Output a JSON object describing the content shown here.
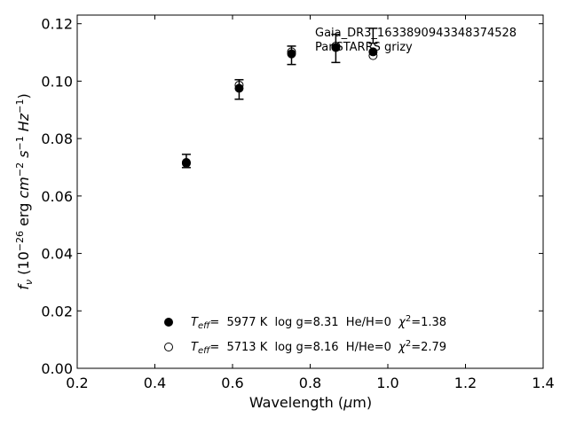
{
  "chart_data": {
    "type": "scatter",
    "xlabel_parts": {
      "main": "Wavelength (",
      "mu": "μ",
      "unit": "m)"
    },
    "ylabel_parts": {
      "f": "f",
      "nu": "ν",
      "open": " (10",
      "exp1": "−26",
      "erg": " erg ",
      "cm": "cm",
      "exp2": "−2",
      "s": " s",
      "exp3": "−1",
      "hz": " Hz",
      "exp4": "−1",
      "close": ")"
    },
    "xlim": [
      0.2,
      1.4
    ],
    "ylim": [
      0.0,
      0.123
    ],
    "xticks": [
      "0.2",
      "0.4",
      "0.6",
      "0.8",
      "1.0",
      "1.2",
      "1.4"
    ],
    "yticks": [
      "0.00",
      "0.02",
      "0.04",
      "0.06",
      "0.08",
      "0.10",
      "0.12"
    ],
    "grid": false,
    "annotations": {
      "source_id": "Gaia_DR3_1633890943348374528",
      "survey": "PanSTARRS grizy"
    },
    "observed": {
      "x": [
        0.481,
        0.617,
        0.752,
        0.866,
        0.962
      ],
      "y": [
        0.0722,
        0.0971,
        0.109,
        0.1114,
        0.1158
      ],
      "yerr": [
        0.0023,
        0.0034,
        0.0032,
        0.0049,
        0.0026
      ]
    },
    "series": [
      {
        "marker": "filled-circle",
        "label_parts": {
          "T": "T",
          "eff": "eff",
          "rest1": "=  5977 K  log g=8.31  He/H=0  ",
          "chi": "χ",
          "sup": "2",
          "rest2": "=1.38"
        },
        "x": [
          0.481,
          0.617,
          0.752,
          0.866,
          0.962
        ],
        "y": [
          0.0717,
          0.0975,
          0.1095,
          0.1117,
          0.1102
        ]
      },
      {
        "marker": "open-circle",
        "label_parts": {
          "T": "T",
          "eff": "eff",
          "rest1": "=  5713 K  log g=8.16  H/He=0  ",
          "chi": "χ",
          "sup": "2",
          "rest2": "=2.79"
        },
        "x": [
          0.481,
          0.617,
          0.752,
          0.866,
          0.962
        ],
        "y": [
          0.0714,
          0.0986,
          0.1102,
          0.1122,
          0.1089
        ]
      }
    ]
  }
}
